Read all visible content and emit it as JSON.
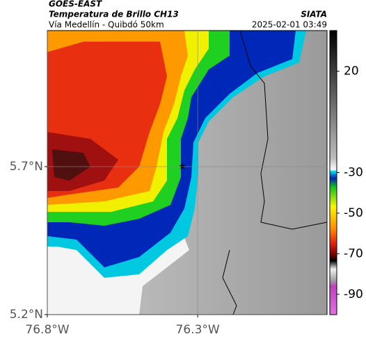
{
  "chart_data": {
    "type": "map",
    "source": "GOES-EAST",
    "title": "Temperatura de Brillo CH13",
    "subtitle": "Vía Medellín - Quibdó 50km",
    "agency": "SIATA",
    "timestamp": "2025-02-01 03:49",
    "xlim": [
      -76.8,
      -75.87
    ],
    "ylim": [
      5.2,
      6.16
    ],
    "xticks": [
      {
        "value": -76.8,
        "label": "76.8°W"
      },
      {
        "value": -76.3,
        "label": "76.3°W"
      }
    ],
    "yticks": [
      {
        "value": 5.2,
        "label": "5.2°N"
      },
      {
        "value": 5.7,
        "label": "5.7°N"
      }
    ],
    "grid": true,
    "colorbar": {
      "lim": [
        -100,
        40
      ],
      "ticks": [
        20,
        -30,
        -50,
        -70,
        -90
      ]
    }
  }
}
